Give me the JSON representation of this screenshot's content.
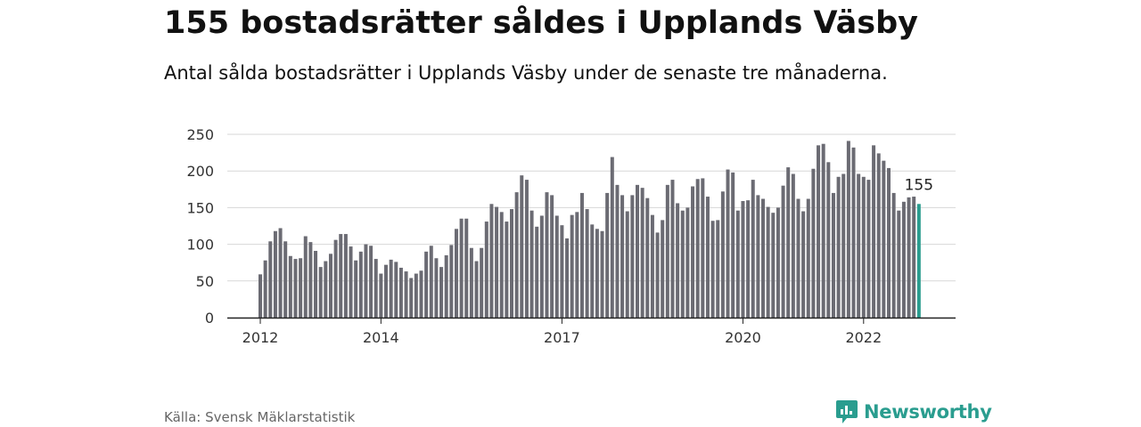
{
  "header": {
    "title": "155 bostadsrätter såldes i Upplands Väsby",
    "subtitle": "Antal sålda bostadsrätter i Upplands Väsby under de senaste tre månaderna."
  },
  "footer": {
    "source": "Källa: Svensk Mäklarstatistik",
    "brand": "Newsworthy"
  },
  "colors": {
    "bar": "#6b6b73",
    "highlight": "#2a9d8f",
    "grid": "#d7d7d7",
    "axis": "#222222"
  },
  "chart_data": {
    "type": "bar",
    "title": "",
    "xlabel": "",
    "ylabel": "",
    "ylim": [
      0,
      250
    ],
    "yticks": [
      0,
      50,
      100,
      150,
      200,
      250
    ],
    "xtick_labels": [
      {
        "label": "2012",
        "index": 0
      },
      {
        "label": "2014",
        "index": 24
      },
      {
        "label": "2017",
        "index": 60
      },
      {
        "label": "2020",
        "index": 96
      },
      {
        "label": "2022",
        "index": 120
      }
    ],
    "highlight_label": "155",
    "values": [
      59,
      78,
      104,
      118,
      122,
      104,
      84,
      80,
      81,
      111,
      103,
      91,
      69,
      77,
      87,
      106,
      114,
      114,
      97,
      78,
      90,
      100,
      98,
      80,
      60,
      72,
      79,
      76,
      68,
      63,
      54,
      60,
      64,
      90,
      98,
      81,
      69,
      85,
      99,
      121,
      135,
      135,
      95,
      77,
      95,
      131,
      155,
      151,
      144,
      131,
      148,
      171,
      194,
      188,
      146,
      124,
      139,
      171,
      167,
      139,
      126,
      108,
      140,
      144,
      170,
      148,
      127,
      121,
      118,
      170,
      219,
      181,
      167,
      145,
      167,
      181,
      177,
      163,
      140,
      116,
      133,
      181,
      188,
      156,
      146,
      150,
      179,
      189,
      190,
      165,
      132,
      133,
      172,
      202,
      198,
      146,
      159,
      160,
      188,
      167,
      162,
      151,
      143,
      150,
      180,
      205,
      196,
      162,
      145,
      162,
      203,
      235,
      237,
      212,
      170,
      192,
      196,
      241,
      232,
      196,
      192,
      188,
      235,
      224,
      214,
      204,
      170,
      146,
      158,
      164,
      165,
      155
    ]
  }
}
